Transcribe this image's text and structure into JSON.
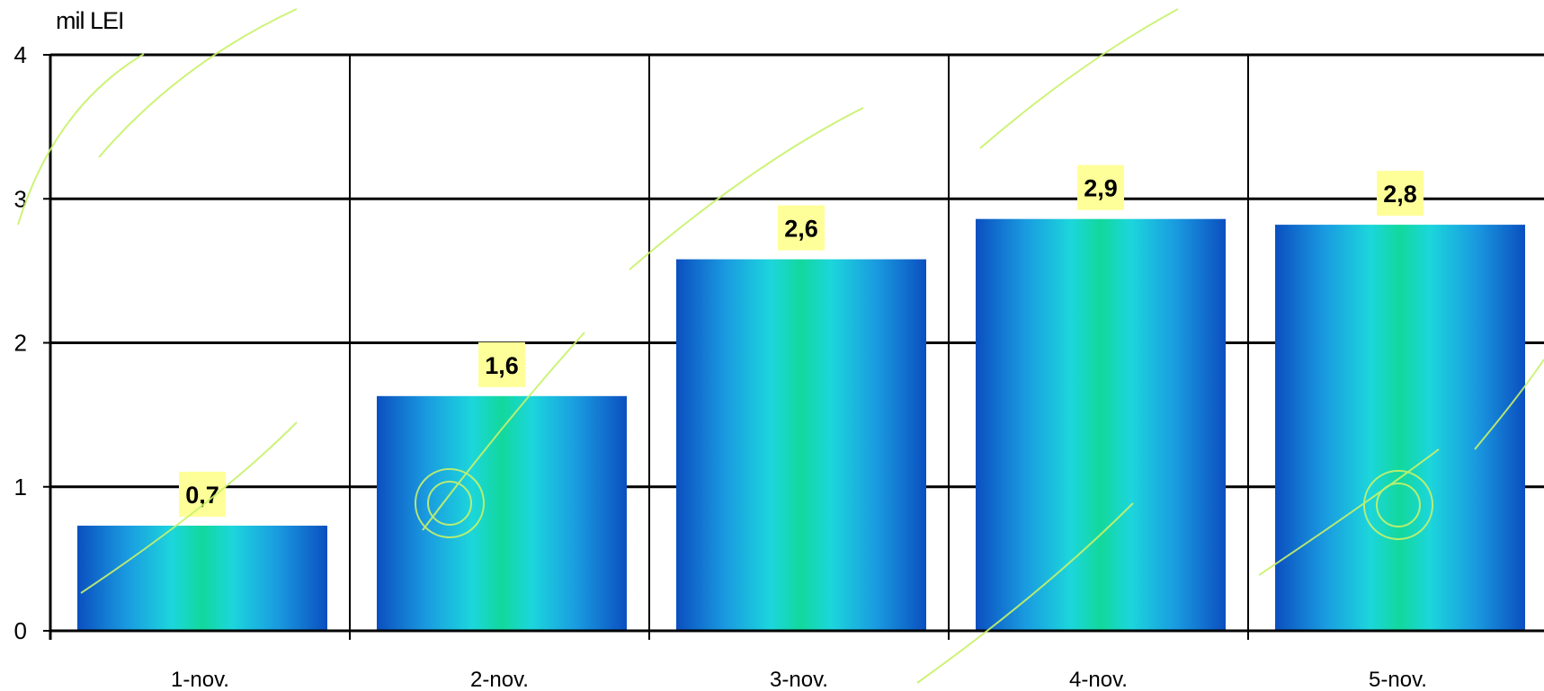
{
  "chart_data": {
    "type": "bar",
    "unit_label": "mil LEI",
    "categories": [
      "1-nov.",
      "2-nov.",
      "3-nov.",
      "4-nov.",
      "5-nov."
    ],
    "values": [
      0.73,
      1.63,
      2.58,
      2.86,
      2.82
    ],
    "data_labels": [
      "0,7",
      "1,6",
      "2,6",
      "2,9",
      "2,8"
    ],
    "y_ticks": [
      "0",
      "1",
      "2",
      "3",
      "4"
    ],
    "ylim": [
      0,
      4
    ],
    "grid": true,
    "colors": {
      "bar_edge": "#0a5cc4",
      "bar_mid": "#17d3dc",
      "bar_center": "#0fd89e",
      "label_bg": "#ffff99",
      "axis": "#000000"
    }
  }
}
